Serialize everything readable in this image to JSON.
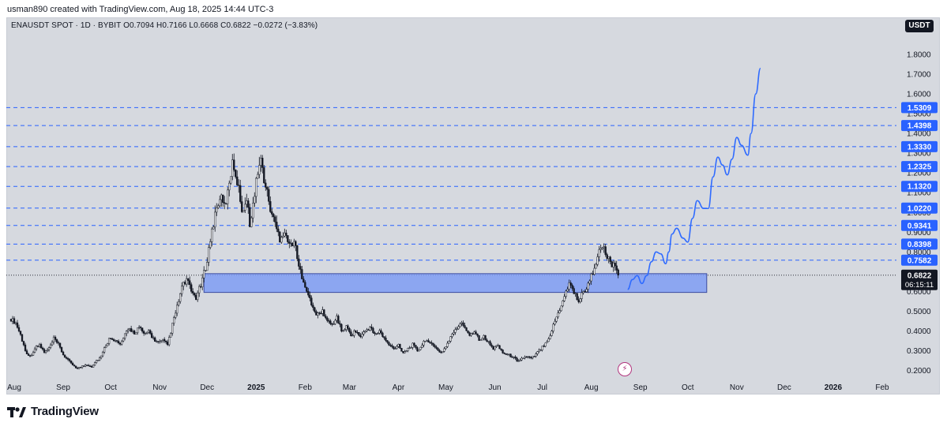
{
  "header": {
    "attribution": "usman890 created with TradingView.com, Aug 18, 2025 14:44 UTC-3",
    "symbol_line": "ENAUSDT SPOT · 1D · BYBIT  O0.7094  H0.7166  L0.6668  C0.6822  −0.0272 (−3.83%)",
    "currency": "USDT"
  },
  "footer": {
    "brand": "TradingView"
  },
  "colors": {
    "background": "#d6d9df",
    "candle": "#131722",
    "level_line": "#2962ff",
    "zone_fill": "#7f9cf5",
    "projection": "#2f6bff",
    "label_bg": "#2962ff",
    "price_bg": "#131722"
  },
  "icons": {
    "lightning": "lightning-icon"
  },
  "chart_data": {
    "type": "candlestick",
    "symbol": "ENAUSDT",
    "interval": "1D",
    "exchange": "BYBIT",
    "ohlc": {
      "open": 0.7094,
      "high": 0.7166,
      "low": 0.6668,
      "close": 0.6822,
      "change": -0.0272,
      "change_pct": -3.83
    },
    "ylim": [
      0.15,
      1.9
    ],
    "y_ticks": [
      0.2,
      0.3,
      0.4,
      0.5,
      0.6,
      0.8,
      0.9,
      1.0,
      1.1,
      1.2,
      1.3,
      1.4,
      1.5,
      1.6,
      1.7,
      1.8
    ],
    "y_tick_labels": [
      "0.2000",
      "0.3000",
      "0.4000",
      "0.5000",
      "0.6000",
      "0.8000",
      "0.9000",
      "1.0000",
      "1.1000",
      "1.2000",
      "1.3000",
      "1.4000",
      "1.5000",
      "1.6000",
      "1.7000",
      "1.8000"
    ],
    "x_labels": [
      "Aug",
      "Sep",
      "Oct",
      "Nov",
      "Dec",
      "2025",
      "Feb",
      "Mar",
      "Apr",
      "May",
      "Jun",
      "Jul",
      "Aug",
      "Sep",
      "Oct",
      "Nov",
      "Dec",
      "2026",
      "Feb"
    ],
    "x_label_days": [
      0,
      31,
      61,
      92,
      122,
      153,
      184,
      212,
      243,
      273,
      304,
      334,
      365,
      396,
      426,
      457,
      487,
      518,
      549
    ],
    "bold_labels": [
      "2025",
      "2026"
    ],
    "last_day": 384,
    "x_range_days": [
      -3,
      560
    ],
    "price_levels": [
      1.5309,
      1.4398,
      1.333,
      1.2325,
      1.132,
      1.022,
      0.9341,
      0.8398,
      0.7582
    ],
    "price_level_labels": [
      "1.5309",
      "1.4398",
      "1.3330",
      "1.2325",
      "1.1320",
      "1.0220",
      "0.9341",
      "0.8398",
      "0.7582"
    ],
    "current_price": 0.6822,
    "current_price_label": "0.6822",
    "countdown": "06:15:11",
    "zone": {
      "from_day": 122,
      "to_day": 440,
      "low": 0.595,
      "high": 0.69
    },
    "price_path": [
      [
        0,
        0.46
      ],
      [
        3,
        0.44
      ],
      [
        6,
        0.38
      ],
      [
        9,
        0.3
      ],
      [
        12,
        0.27
      ],
      [
        15,
        0.31
      ],
      [
        18,
        0.33
      ],
      [
        21,
        0.29
      ],
      [
        24,
        0.31
      ],
      [
        27,
        0.36
      ],
      [
        30,
        0.33
      ],
      [
        33,
        0.28
      ],
      [
        36,
        0.25
      ],
      [
        39,
        0.23
      ],
      [
        42,
        0.21
      ],
      [
        45,
        0.22
      ],
      [
        48,
        0.23
      ],
      [
        51,
        0.22
      ],
      [
        54,
        0.25
      ],
      [
        57,
        0.27
      ],
      [
        60,
        0.33
      ],
      [
        63,
        0.37
      ],
      [
        66,
        0.35
      ],
      [
        69,
        0.33
      ],
      [
        72,
        0.38
      ],
      [
        75,
        0.41
      ],
      [
        78,
        0.39
      ],
      [
        81,
        0.42
      ],
      [
        84,
        0.38
      ],
      [
        87,
        0.4
      ],
      [
        90,
        0.36
      ],
      [
        93,
        0.34
      ],
      [
        96,
        0.35
      ],
      [
        99,
        0.33
      ],
      [
        102,
        0.43
      ],
      [
        105,
        0.52
      ],
      [
        108,
        0.62
      ],
      [
        111,
        0.66
      ],
      [
        114,
        0.6
      ],
      [
        117,
        0.57
      ],
      [
        120,
        0.63
      ],
      [
        123,
        0.72
      ],
      [
        126,
        0.86
      ],
      [
        129,
        0.99
      ],
      [
        132,
        1.08
      ],
      [
        135,
        1.03
      ],
      [
        138,
        1.13
      ],
      [
        140,
        1.27
      ],
      [
        143,
        1.16
      ],
      [
        146,
        1.02
      ],
      [
        149,
        1.06
      ],
      [
        151,
        0.95
      ],
      [
        154,
        1.08
      ],
      [
        156,
        1.22
      ],
      [
        158,
        1.26
      ],
      [
        161,
        1.13
      ],
      [
        164,
        1.02
      ],
      [
        167,
        0.94
      ],
      [
        170,
        0.87
      ],
      [
        173,
        0.91
      ],
      [
        176,
        0.83
      ],
      [
        179,
        0.86
      ],
      [
        182,
        0.72
      ],
      [
        185,
        0.66
      ],
      [
        188,
        0.58
      ],
      [
        191,
        0.51
      ],
      [
        194,
        0.48
      ],
      [
        197,
        0.5
      ],
      [
        200,
        0.45
      ],
      [
        203,
        0.43
      ],
      [
        206,
        0.47
      ],
      [
        209,
        0.4
      ],
      [
        212,
        0.42
      ],
      [
        215,
        0.38
      ],
      [
        218,
        0.4
      ],
      [
        221,
        0.37
      ],
      [
        224,
        0.4
      ],
      [
        227,
        0.42
      ],
      [
        230,
        0.38
      ],
      [
        233,
        0.4
      ],
      [
        236,
        0.36
      ],
      [
        239,
        0.33
      ],
      [
        242,
        0.31
      ],
      [
        245,
        0.33
      ],
      [
        248,
        0.29
      ],
      [
        251,
        0.31
      ],
      [
        254,
        0.33
      ],
      [
        257,
        0.3
      ],
      [
        260,
        0.33
      ],
      [
        263,
        0.36
      ],
      [
        266,
        0.33
      ],
      [
        269,
        0.31
      ],
      [
        272,
        0.29
      ],
      [
        275,
        0.32
      ],
      [
        278,
        0.37
      ],
      [
        281,
        0.4
      ],
      [
        284,
        0.44
      ],
      [
        287,
        0.42
      ],
      [
        290,
        0.38
      ],
      [
        293,
        0.4
      ],
      [
        296,
        0.36
      ],
      [
        299,
        0.37
      ],
      [
        302,
        0.34
      ],
      [
        305,
        0.31
      ],
      [
        308,
        0.33
      ],
      [
        311,
        0.29
      ],
      [
        314,
        0.28
      ],
      [
        317,
        0.27
      ],
      [
        320,
        0.25
      ],
      [
        323,
        0.26
      ],
      [
        326,
        0.27
      ],
      [
        329,
        0.26
      ],
      [
        332,
        0.28
      ],
      [
        335,
        0.31
      ],
      [
        338,
        0.34
      ],
      [
        341,
        0.38
      ],
      [
        344,
        0.45
      ],
      [
        347,
        0.51
      ],
      [
        350,
        0.58
      ],
      [
        353,
        0.64
      ],
      [
        356,
        0.6
      ],
      [
        359,
        0.55
      ],
      [
        362,
        0.6
      ],
      [
        365,
        0.63
      ],
      [
        368,
        0.7
      ],
      [
        371,
        0.78
      ],
      [
        374,
        0.83
      ],
      [
        377,
        0.77
      ],
      [
        380,
        0.74
      ],
      [
        383,
        0.7
      ],
      [
        384,
        0.68
      ]
    ],
    "projection_path": [
      [
        390,
        0.61
      ],
      [
        393,
        0.66
      ],
      [
        396,
        0.68
      ],
      [
        399,
        0.64
      ],
      [
        402,
        0.68
      ],
      [
        405,
        0.75
      ],
      [
        408,
        0.8
      ],
      [
        411,
        0.79
      ],
      [
        414,
        0.74
      ],
      [
        416,
        0.8
      ],
      [
        418,
        0.89
      ],
      [
        421,
        0.92
      ],
      [
        425,
        0.87
      ],
      [
        428,
        0.85
      ],
      [
        431,
        0.97
      ],
      [
        434,
        1.06
      ],
      [
        438,
        1.02
      ],
      [
        441,
        1.02
      ],
      [
        444,
        1.18
      ],
      [
        447,
        1.28
      ],
      [
        450,
        1.24
      ],
      [
        453,
        1.19
      ],
      [
        456,
        1.27
      ],
      [
        459,
        1.38
      ],
      [
        462,
        1.34
      ],
      [
        466,
        1.29
      ],
      [
        468,
        1.4
      ],
      [
        471,
        1.6
      ],
      [
        474,
        1.73
      ]
    ]
  }
}
